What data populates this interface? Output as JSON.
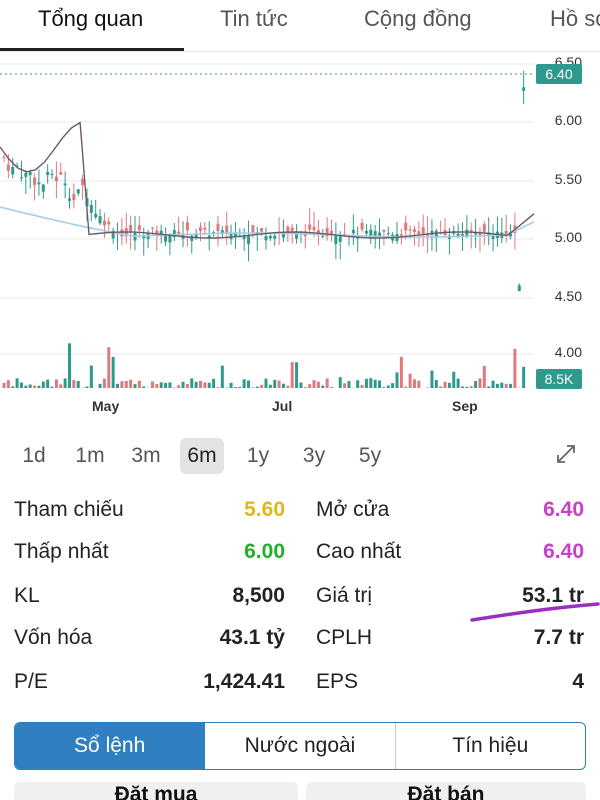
{
  "tabs": [
    "Tổng quan",
    "Tin tức",
    "Cộng đồng",
    "Hồ sơ"
  ],
  "active_tab": 0,
  "chart": {
    "x_labels": [
      "May",
      "Jul",
      "Sep"
    ],
    "y_ticks": [
      "6.50",
      "6.00",
      "5.50",
      "5.00",
      "4.50",
      "4.00"
    ],
    "price_badge": "6.40",
    "volume_badge": "8.5K",
    "colors": {
      "up": "#2e9a8e",
      "down": "#e07a7a",
      "ma_dark": "#6b5a66",
      "ma_light": "#9fd0e8",
      "grid": "#e8e8e8"
    }
  },
  "chart_data": {
    "type": "candlestick",
    "x_labels": [
      "May",
      "Jul",
      "Sep"
    ],
    "ylim": [
      3.9,
      6.55
    ],
    "last_price": 6.4,
    "volume_last": "8.5K"
  },
  "ranges": [
    "1d",
    "1m",
    "3m",
    "6m",
    "1y",
    "3y",
    "5y"
  ],
  "active_range": "6m",
  "stats": {
    "ref_label": "Tham chiếu",
    "ref_value": "5.60",
    "open_label": "Mở cửa",
    "open_value": "6.40",
    "low_label": "Thấp nhất",
    "low_value": "6.00",
    "high_label": "Cao nhất",
    "high_value": "6.40",
    "vol_label": "KL",
    "vol_value": "8,500",
    "val_label": "Giá trị",
    "val_value": "53.1 tr",
    "cap_label": "Vốn hóa",
    "cap_value": "43.1 tỷ",
    "shares_label": "CPLH",
    "shares_value": "7.7 tr",
    "pe_label": "P/E",
    "pe_value": "1,424.41",
    "eps_label": "EPS",
    "eps_value": "4"
  },
  "segments": [
    "Sổ lệnh",
    "Nước ngoài",
    "Tín hiệu"
  ],
  "orders": {
    "buy": "Đặt mua",
    "sell": "Đặt bán"
  }
}
